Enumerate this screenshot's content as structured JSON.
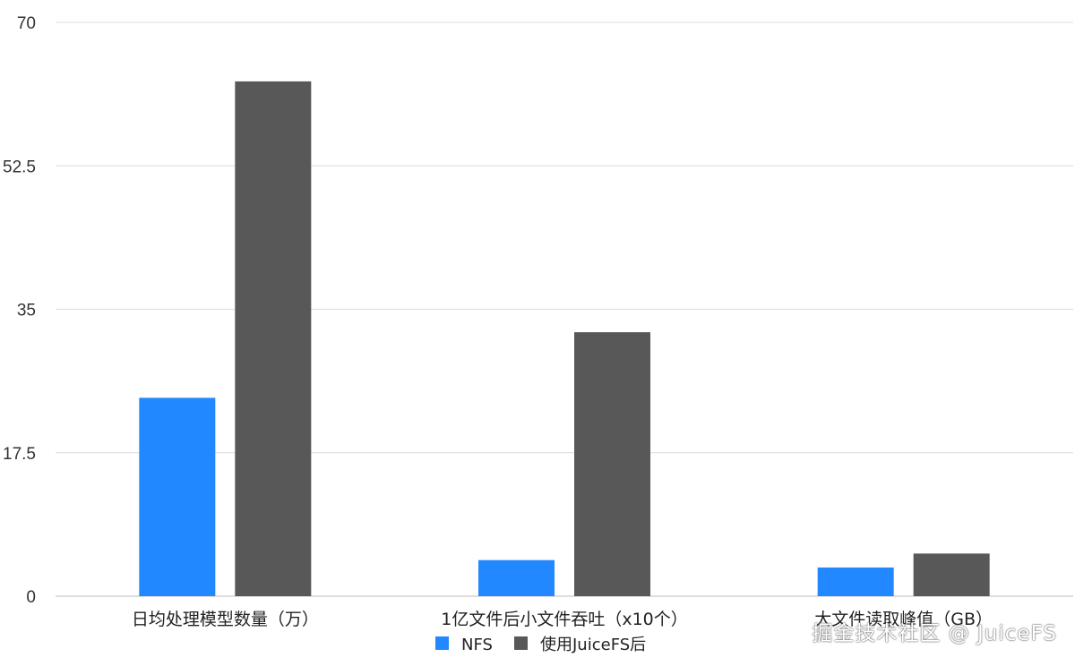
{
  "chart_data": {
    "type": "bar",
    "title": "",
    "xlabel": "",
    "ylabel": "",
    "categories": [
      "日均处理模型数量（万）",
      "1亿文件后小文件吞吐（x10个）",
      "大文件读取峰值（GB）"
    ],
    "series": [
      {
        "name": "NFS",
        "values": [
          24.2,
          4.4,
          3.5
        ],
        "color": "#2288ff"
      },
      {
        "name": "使用JuiceFS后",
        "values": [
          62.8,
          32.2,
          5.2
        ],
        "color": "#585858"
      }
    ],
    "ylim": [
      0,
      70
    ],
    "yticks": [
      "0",
      "17.5",
      "35",
      "52.5",
      "70"
    ],
    "grid": true,
    "legend_position": "bottom-center"
  },
  "watermark": "掘金技术社区 @ JuiceFS"
}
